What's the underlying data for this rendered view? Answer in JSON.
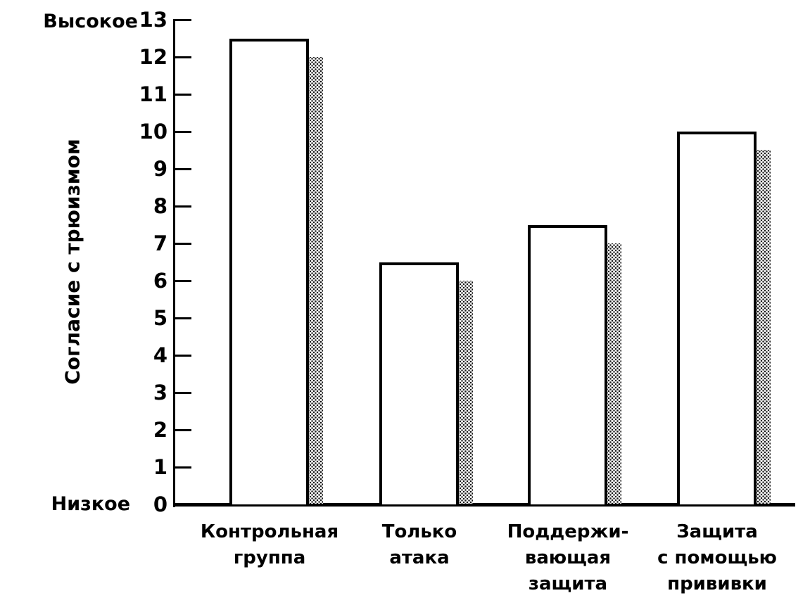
{
  "chart_data": {
    "type": "bar",
    "title": "",
    "xlabel": "",
    "ylabel": "Согласие с трюизмом",
    "y_axis_top_label": "Высокое",
    "y_axis_bottom_label": "Низкое",
    "ylim": [
      0,
      13
    ],
    "y_ticks": [
      0,
      1,
      2,
      3,
      4,
      5,
      6,
      7,
      8,
      9,
      10,
      11,
      12,
      13
    ],
    "categories": [
      "Контрольная\nгруппа",
      "Только\nатака",
      "Поддержи-\nвающая\nзащита",
      "Защита\nс помощью\nпрививки"
    ],
    "values": [
      12.5,
      6.5,
      7.5,
      10
    ],
    "grid": false,
    "legend": null,
    "bar_fill": "#ffffff",
    "bar_border": "#000000",
    "shadow_style": "gray-halftone-dither"
  }
}
